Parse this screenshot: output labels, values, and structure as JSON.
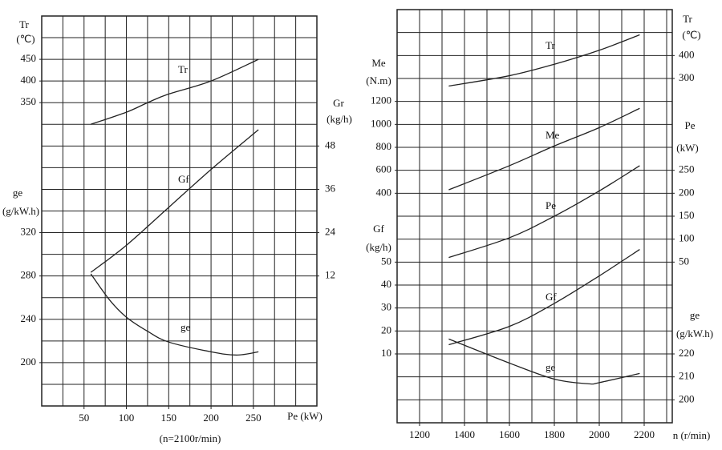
{
  "chart_data": [
    {
      "type": "line",
      "xlim": [
        0,
        325
      ],
      "xticks": [
        50,
        100,
        150,
        200,
        250
      ],
      "x_grid": [
        0,
        25,
        50,
        75,
        100,
        125,
        150,
        175,
        200,
        225,
        250,
        275,
        300,
        325
      ],
      "y_grid": [
        -350,
        -300,
        -250,
        -200,
        -150,
        -100,
        -50,
        0,
        50,
        100,
        150,
        200,
        250,
        300,
        350,
        400,
        450,
        500,
        550
      ],
      "x_label": "Pe (kW)",
      "note": "(n=2100r/min)",
      "y_axes": [
        {
          "name": "Tr",
          "unit": "(℃)",
          "side": "left",
          "lim": [
            -350,
            550
          ],
          "ticks": [
            350,
            400,
            450
          ]
        },
        {
          "name": "ge",
          "unit": "(g/kW.h)",
          "side": "left",
          "lim": [
            160,
            520
          ],
          "ticks": [
            200,
            240,
            280,
            320
          ]
        },
        {
          "name": "Gr",
          "unit": "(kg/h)",
          "side": "right",
          "lim": [
            -24,
            84
          ],
          "ticks": [
            12,
            24,
            36,
            48
          ]
        }
      ],
      "series": [
        {
          "name": "Tr",
          "axis": 0,
          "color": "#222222",
          "x": [
            58,
            100,
            125,
            150,
            200,
            256
          ],
          "values": [
            300,
            328,
            350,
            370,
            400,
            450
          ]
        },
        {
          "name": "Gf",
          "axis": 2,
          "color": "#222222",
          "x": [
            58,
            100,
            150,
            200,
            256
          ],
          "values": [
            13,
            20.5,
            31,
            41.5,
            52.5
          ]
        },
        {
          "name": "ge",
          "axis": 1,
          "color": "#222222",
          "x": [
            58,
            80,
            100,
            125,
            150,
            200,
            230,
            256
          ],
          "values": [
            282,
            258,
            242,
            229,
            219,
            210,
            207,
            210
          ]
        }
      ]
    },
    {
      "type": "line",
      "xlim": [
        1100,
        2325
      ],
      "xticks": [
        1200,
        1400,
        1600,
        1800,
        2000,
        2200
      ],
      "x_grid": [
        1100,
        1200,
        1300,
        1400,
        1500,
        1600,
        1700,
        1800,
        1900,
        2000,
        2100,
        2200,
        2300,
        2325
      ],
      "y_grid": [
        -1200,
        -1100,
        -1000,
        -900,
        -800,
        -700,
        -600,
        -500,
        -400,
        -300,
        -200,
        -100,
        0,
        100,
        200,
        300,
        400,
        500,
        600
      ],
      "x_label": "n (r/min)",
      "y_axes": [
        {
          "name": "Tr",
          "unit": "(℃)",
          "side": "right",
          "lim": [
            -1200,
            600
          ],
          "ticks": [
            300,
            400
          ]
        },
        {
          "name": "Me",
          "unit": "(N.m)",
          "side": "left",
          "lim": [
            -1600,
            2000
          ],
          "ticks": [
            400,
            600,
            800,
            1000,
            1200
          ]
        },
        {
          "name": "Pe",
          "unit": "(kW)",
          "side": "right",
          "lim": [
            -300,
            600
          ],
          "ticks": [
            50,
            100,
            150,
            200,
            250
          ]
        },
        {
          "name": "Gf",
          "unit": "(kg/h)",
          "side": "left",
          "lim": [
            -20,
            160
          ],
          "ticks": [
            10,
            20,
            30,
            40,
            50
          ]
        },
        {
          "name": "ge",
          "unit": "(g/kW.h)",
          "side": "right",
          "lim": [
            190,
            370
          ],
          "ticks": [
            200,
            210,
            220
          ]
        }
      ],
      "series": [
        {
          "name": "Tr",
          "axis": 0,
          "color": "#222222",
          "x": [
            1330,
            1600,
            1800,
            2000,
            2180
          ],
          "values": [
            267,
            312,
            362,
            423,
            490
          ]
        },
        {
          "name": "Me",
          "axis": 1,
          "color": "#222222",
          "x": [
            1330,
            1600,
            1800,
            2000,
            2180
          ],
          "values": [
            430,
            640,
            812,
            972,
            1140
          ]
        },
        {
          "name": "Pe",
          "axis": 2,
          "color": "#222222",
          "x": [
            1330,
            1600,
            1800,
            2000,
            2180
          ],
          "values": [
            60,
            103,
            150,
            205,
            260
          ]
        },
        {
          "name": "Gf",
          "axis": 3,
          "color": "#222222",
          "x": [
            1330,
            1600,
            1800,
            2000,
            2180
          ],
          "values": [
            14,
            22,
            32,
            44,
            55.5
          ]
        },
        {
          "name": "ge",
          "axis": 4,
          "color": "#222222",
          "x": [
            1330,
            1600,
            1800,
            1950,
            2000,
            2180
          ],
          "values": [
            226.5,
            216,
            209,
            207,
            207.5,
            211.5
          ]
        }
      ]
    }
  ]
}
